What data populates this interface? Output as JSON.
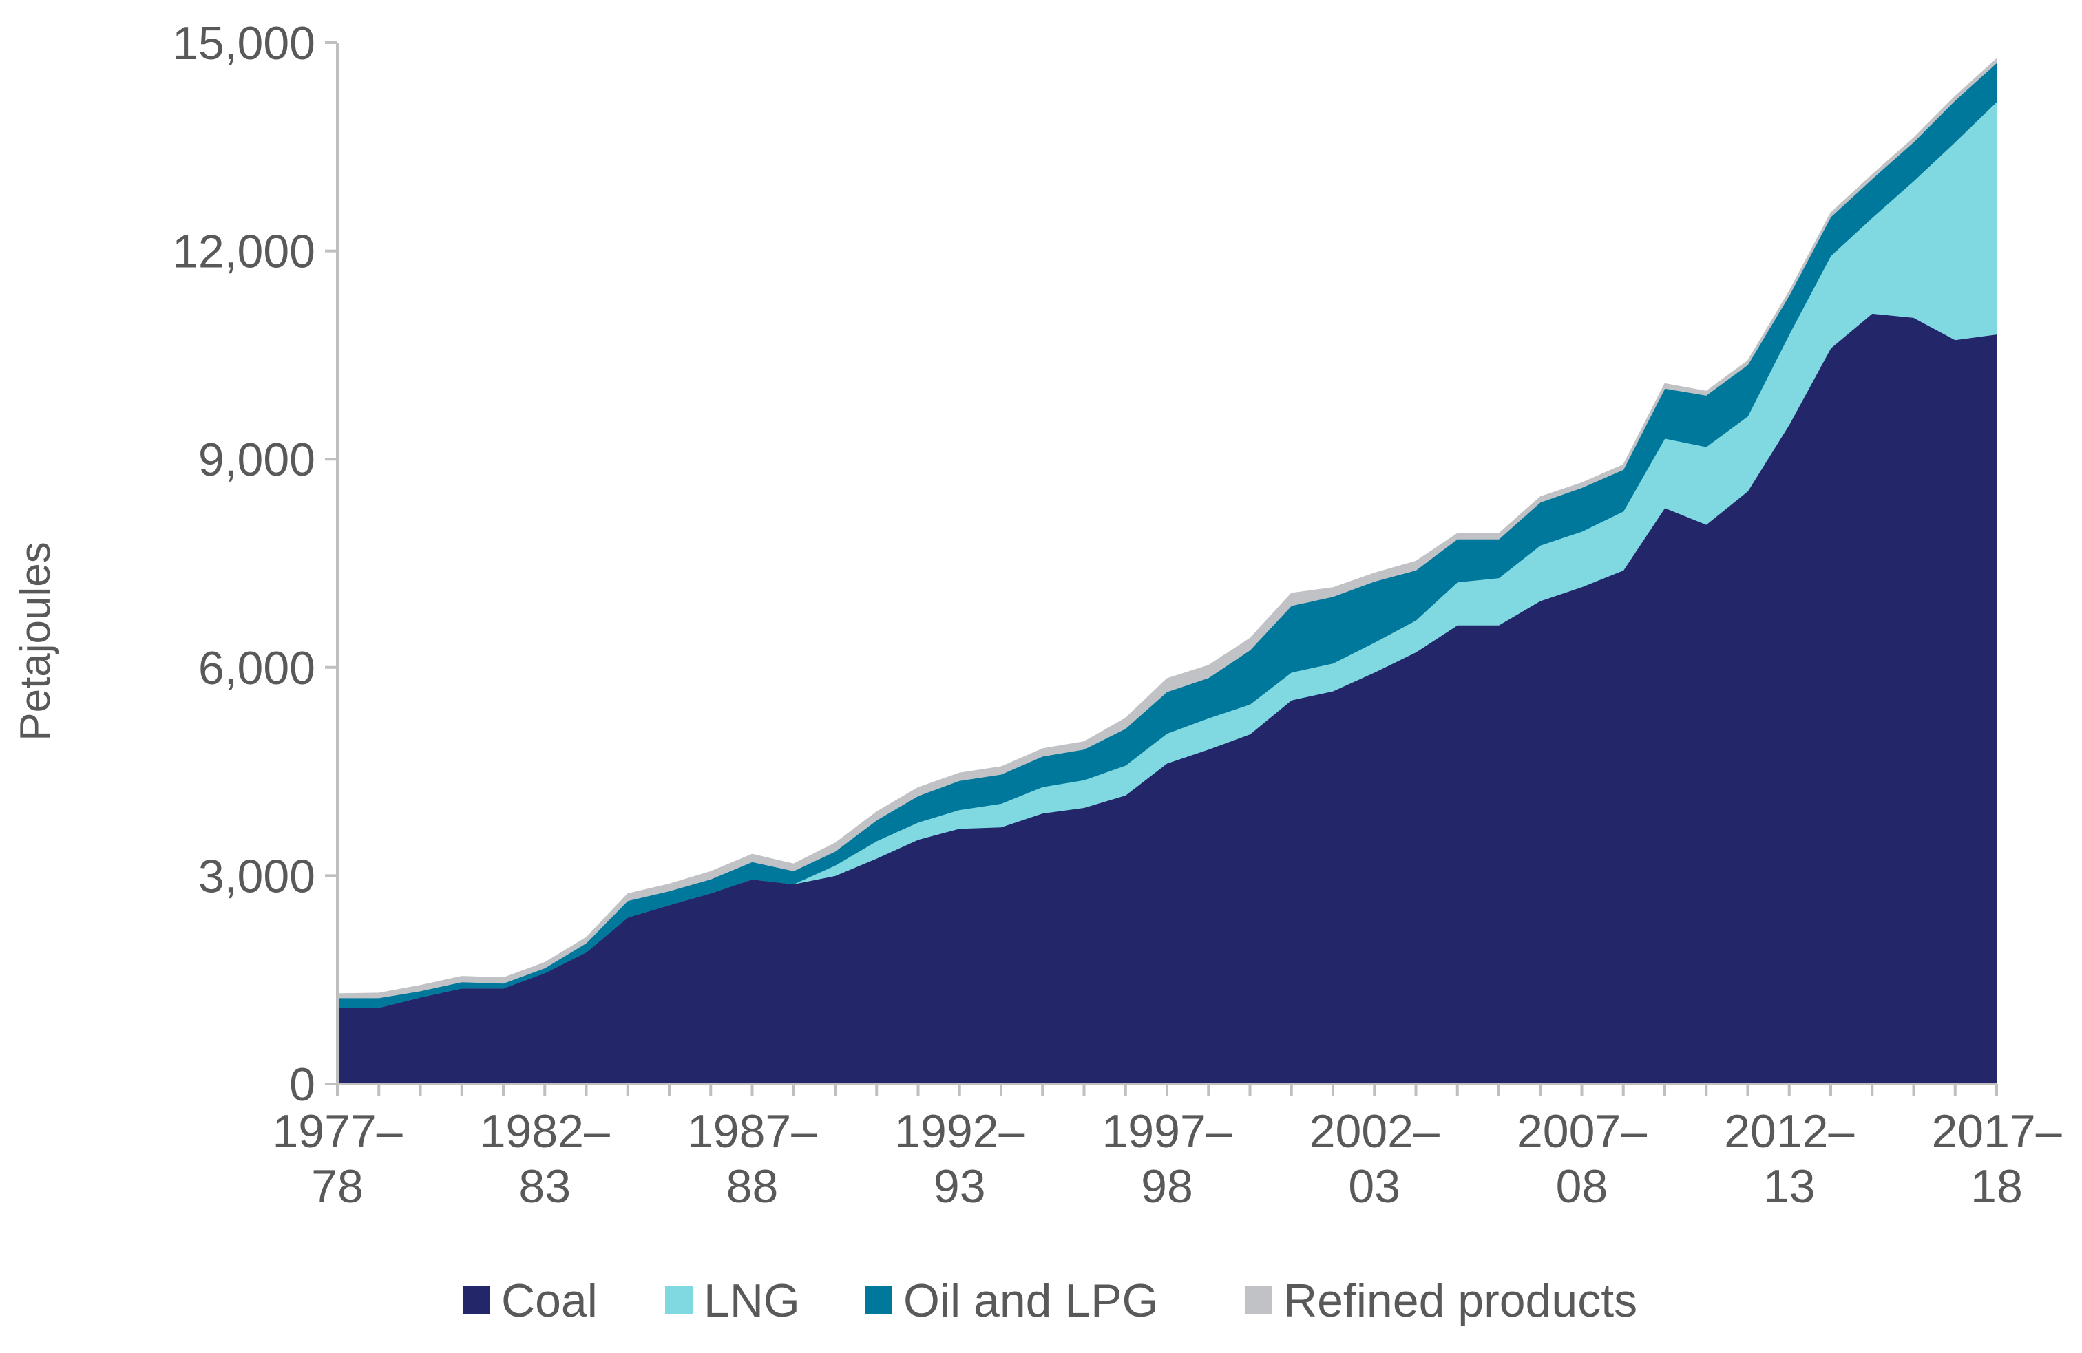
{
  "chart_data": {
    "type": "area",
    "stacked": true,
    "ylabel": "Petajoules",
    "ylim": [
      0,
      15000
    ],
    "yticks": [
      0,
      3000,
      6000,
      9000,
      12000,
      15000
    ],
    "ytick_labels": [
      "0",
      "3,000",
      "6,000",
      "9,000",
      "12,000",
      "15,000"
    ],
    "xtick_labels": [
      {
        "line1": "1977–",
        "line2": "78",
        "index": 0
      },
      {
        "line1": "1982–",
        "line2": "83",
        "index": 5
      },
      {
        "line1": "1987–",
        "line2": "88",
        "index": 10
      },
      {
        "line1": "1992–",
        "line2": "93",
        "index": 15
      },
      {
        "line1": "1997–",
        "line2": "98",
        "index": 20
      },
      {
        "line1": "2002–",
        "line2": "03",
        "index": 25
      },
      {
        "line1": "2007–",
        "line2": "08",
        "index": 30
      },
      {
        "line1": "2012–",
        "line2": "13",
        "index": 35
      },
      {
        "line1": "2017–",
        "line2": "18",
        "index": 40
      }
    ],
    "categories": [
      "1977–78",
      "1978–79",
      "1979–80",
      "1980–81",
      "1981–82",
      "1982–83",
      "1983–84",
      "1984–85",
      "1985–86",
      "1986–87",
      "1987–88",
      "1988–89",
      "1989–90",
      "1990–91",
      "1991–92",
      "1992–93",
      "1993–94",
      "1994–95",
      "1995–96",
      "1996–97",
      "1997–98",
      "1998–99",
      "1999–00",
      "2000–01",
      "2001–02",
      "2002–03",
      "2003–04",
      "2004–05",
      "2005–06",
      "2006–07",
      "2007–08",
      "2008–09",
      "2009–10",
      "2010–11",
      "2011–12",
      "2012–13",
      "2013–14",
      "2014–15",
      "2015–16",
      "2016–17",
      "2017–18"
    ],
    "series": [
      {
        "name": "Coal",
        "color": "#24266a",
        "values": [
          1100,
          1100,
          1250,
          1380,
          1380,
          1600,
          1900,
          2400,
          2580,
          2750,
          2950,
          2880,
          3000,
          3250,
          3520,
          3680,
          3700,
          3900,
          3980,
          4160,
          4620,
          4820,
          5040,
          5530,
          5660,
          5930,
          6220,
          6610,
          6610,
          6960,
          7160,
          7400,
          8300,
          8060,
          8540,
          9500,
          10600,
          11100,
          11040,
          10720,
          10800
        ]
      },
      {
        "name": "LNG",
        "color": "#80d8e0",
        "values": [
          0,
          0,
          0,
          0,
          0,
          0,
          0,
          0,
          0,
          0,
          0,
          0,
          150,
          250,
          250,
          270,
          340,
          380,
          400,
          430,
          430,
          450,
          430,
          400,
          400,
          430,
          460,
          620,
          680,
          800,
          800,
          850,
          1000,
          1120,
          1080,
          1300,
          1330,
          1380,
          1970,
          2850,
          3350
        ]
      },
      {
        "name": "Oil and LPG",
        "color": "#00789c",
        "values": [
          140,
          140,
          90,
          90,
          70,
          70,
          130,
          240,
          200,
          200,
          250,
          190,
          200,
          300,
          380,
          420,
          420,
          440,
          440,
          530,
          600,
          580,
          780,
          960,
          960,
          880,
          720,
          620,
          560,
          620,
          630,
          600,
          720,
          740,
          740,
          560,
          560,
          560,
          560,
          600,
          560
        ]
      },
      {
        "name": "Refined products",
        "color": "#c0c2c6",
        "values": [
          60,
          70,
          80,
          80,
          80,
          80,
          80,
          100,
          100,
          110,
          110,
          100,
          120,
          120,
          120,
          110,
          110,
          110,
          110,
          150,
          190,
          180,
          170,
          180,
          130,
          120,
          130,
          80,
          80,
          80,
          70,
          70,
          70,
          60,
          60,
          60,
          60,
          60,
          60,
          60,
          60
        ]
      }
    ],
    "legend": {
      "placement": "bottom",
      "items": [
        "Coal",
        "LNG",
        "Oil and LPG",
        "Refined products"
      ]
    },
    "grid": false
  }
}
